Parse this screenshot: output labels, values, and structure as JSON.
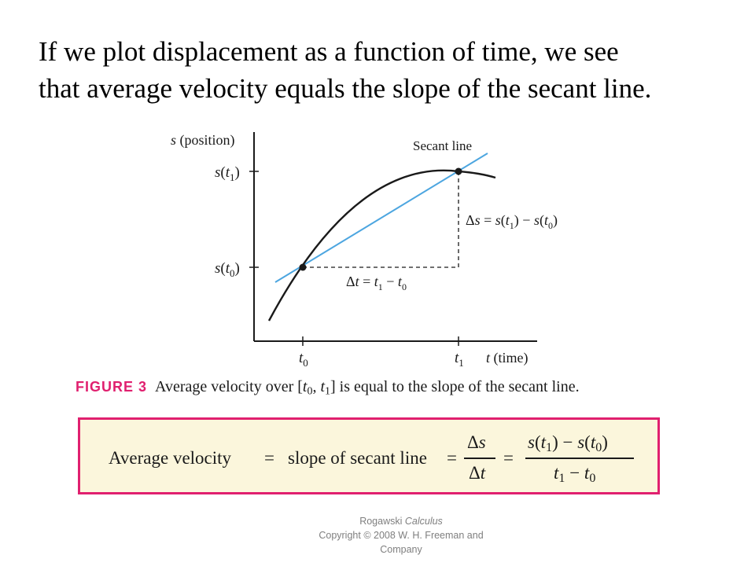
{
  "heading": {
    "line1": "If we plot displacement as a function of time, we see",
    "line2": "that average velocity equals the slope of the secant line."
  },
  "graph": {
    "y_axis_label": "s (position)",
    "x_axis_label": "t (time)",
    "secant_label": "Secant line",
    "y_ticks": [
      "s(t1)",
      "s(t0)"
    ],
    "x_ticks": [
      "t0",
      "t1"
    ],
    "delta_s_label": "Δs = s(t1) − s(t0)",
    "delta_t_label": "Δt = t1 − t0",
    "colors": {
      "curve": "#1a1a1a",
      "secant": "#4da6e0",
      "dashed": "#1a1a1a"
    }
  },
  "caption": {
    "label": "FIGURE 3",
    "text": "Average velocity over [t0, t1] is equal to the slope of the secant line."
  },
  "formula": {
    "lhs": "Average velocity",
    "mid": "slope of secant line",
    "frac1_num": "Δs",
    "frac1_den": "Δt",
    "frac2_num": "s(t1) − s(t0)",
    "frac2_den": "t1 − t0",
    "border_color": "#e0206f",
    "background_color": "#fbf6dc"
  },
  "footer": {
    "line1_prefix": "Rogawski ",
    "line1_title": "Calculus",
    "line2": "Copyright © 2008 W. H. Freeman and",
    "line3": "Company"
  }
}
